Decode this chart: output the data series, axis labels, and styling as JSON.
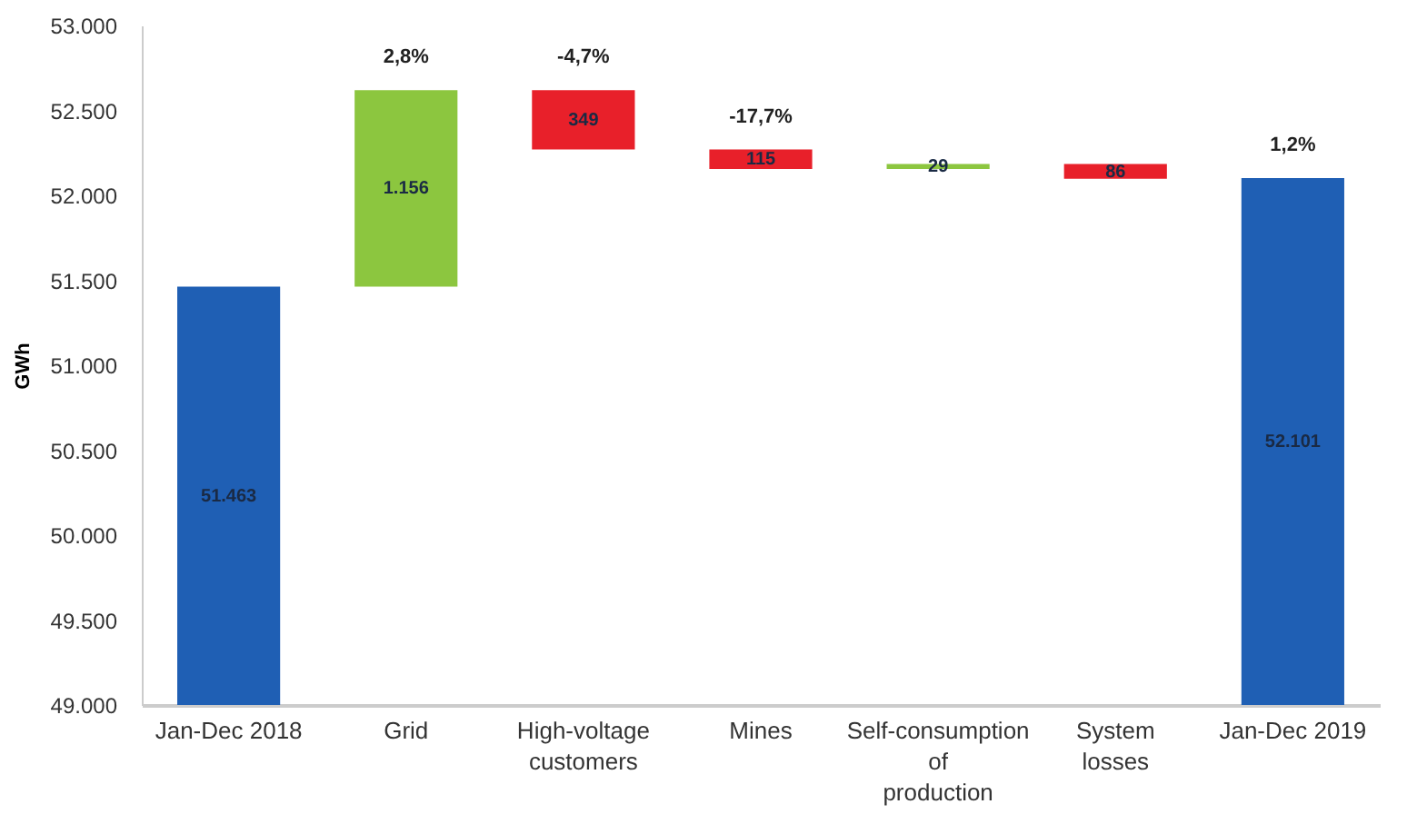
{
  "chart_data": {
    "type": "bar",
    "ylabel": "GWh",
    "categories": [
      "Jan-Dec 2018",
      "Grid",
      "High-voltage customers",
      "Mines",
      "Self-consumption of production",
      "System losses",
      "Jan-Dec 2019"
    ],
    "values": [
      51463,
      1156,
      -349,
      -115,
      29,
      -86,
      52101
    ],
    "base": [
      null,
      51463,
      52619,
      52270,
      52155,
      52184,
      null
    ],
    "colors": [
      "#1f5fb4",
      "#8cc63f",
      "#e8202a",
      "#e8202a",
      "#8cc63f",
      "#e8202a",
      "#1f5fb4"
    ],
    "value_labels": [
      "51.463",
      "1.156",
      "349",
      "115",
      "29",
      "86",
      "52.101"
    ],
    "annotations": [
      {
        "text": "2,8%",
        "x": "Grid",
        "y": 52619
      },
      {
        "text": "-4,7%",
        "x": "High-voltage customers",
        "y": 52619
      },
      {
        "text": "-17,7%",
        "x": "Mines",
        "y": 52270
      },
      {
        "text": "1,2%",
        "x": "Jan-Dec 2019",
        "y": 52101
      }
    ],
    "ylim": [
      49000,
      53000
    ],
    "yticks": [
      {
        "value": 49000,
        "label": "49.000"
      },
      {
        "value": 49500,
        "label": "49.500"
      },
      {
        "value": 50000,
        "label": "50.000"
      },
      {
        "value": 50500,
        "label": "50.500"
      },
      {
        "value": 51000,
        "label": "51.000"
      },
      {
        "value": 51500,
        "label": "51.500"
      },
      {
        "value": 52000,
        "label": "52.000"
      },
      {
        "value": 52500,
        "label": "52.500"
      },
      {
        "value": 53000,
        "label": "53.000"
      }
    ]
  }
}
